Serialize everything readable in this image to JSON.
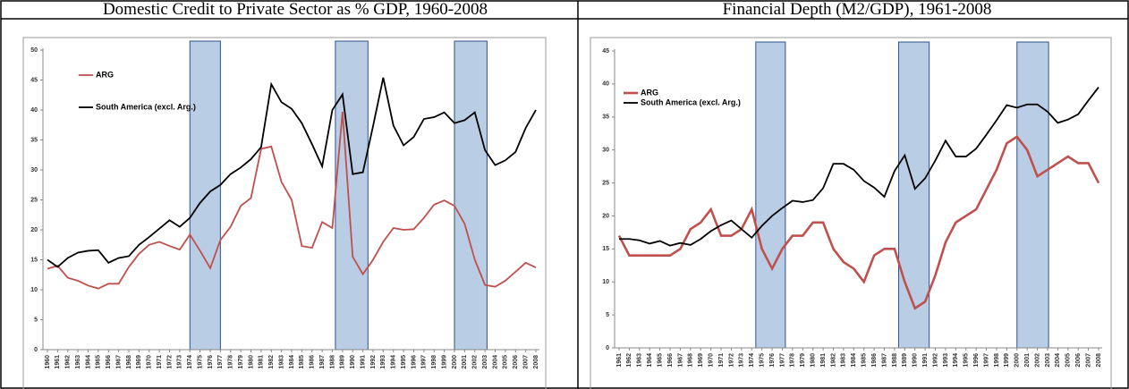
{
  "chart_data": [
    {
      "type": "line",
      "title": "Domestic Credit to Private Sector as % GDP, 1960-2008",
      "x": [
        1960,
        1961,
        1962,
        1963,
        1964,
        1965,
        1966,
        1967,
        1968,
        1969,
        1970,
        1971,
        1972,
        1973,
        1974,
        1975,
        1976,
        1977,
        1978,
        1979,
        1980,
        1981,
        1982,
        1983,
        1984,
        1985,
        1986,
        1987,
        1988,
        1989,
        1990,
        1991,
        1992,
        1993,
        1994,
        1995,
        1996,
        1997,
        1998,
        1999,
        2000,
        2001,
        2002,
        2003,
        2004,
        2005,
        2006,
        2007,
        2008
      ],
      "xlim": [
        1960,
        2008
      ],
      "series": [
        {
          "name": "ARG",
          "color": "#c0504d",
          "values": [
            13.5,
            14,
            12,
            11.5,
            10.7,
            10.2,
            11,
            11,
            13.8,
            16,
            17.5,
            18,
            17.3,
            16.7,
            19.2,
            16.5,
            13.6,
            18.3,
            20.5,
            24,
            25.3,
            33.5,
            33.9,
            28,
            25,
            17.3,
            17,
            21.3,
            20.3,
            39.7,
            15.5,
            12.6,
            15,
            18,
            20.3,
            20,
            20.1,
            22,
            24.2,
            24.9,
            24,
            21,
            15,
            10.8,
            10.5,
            11.5,
            13,
            14.5,
            13.7
          ]
        },
        {
          "name": "South America (excl. Arg.)",
          "color": "#000000",
          "values": [
            15,
            13.8,
            15.3,
            16.2,
            16.5,
            16.6,
            14.5,
            15.3,
            15.6,
            17.5,
            18.8,
            20.2,
            21.6,
            20.5,
            22,
            24.5,
            26.4,
            27.5,
            29.3,
            30.4,
            31.8,
            33.8,
            44.3,
            41.3,
            40.2,
            37.8,
            34.3,
            30.6,
            40,
            42.6,
            29.3,
            29.6,
            37.3,
            45.4,
            37.4,
            34.1,
            35.5,
            38.5,
            38.8,
            39.6,
            37.8,
            38.3,
            39.6,
            33.3,
            30.8,
            31.6,
            33,
            37,
            40
          ]
        }
      ],
      "shaded_periods": [
        [
          1974,
          1977
        ],
        [
          1988.3,
          1991.5
        ],
        [
          2000,
          2003.2
        ]
      ],
      "shade_color": "#b9cde5",
      "ylim": [
        0,
        50
      ],
      "yticks": [
        0,
        5,
        10,
        15,
        20,
        25,
        30,
        35,
        40,
        45,
        50
      ],
      "legend": "upper left"
    },
    {
      "type": "line",
      "title": "Financial Depth (M2/GDP), 1961-2008",
      "x": [
        1961,
        1962,
        1963,
        1964,
        1965,
        1966,
        1967,
        1968,
        1969,
        1970,
        1971,
        1972,
        1973,
        1974,
        1975,
        1976,
        1977,
        1978,
        1979,
        1980,
        1981,
        1982,
        1983,
        1984,
        1985,
        1986,
        1987,
        1988,
        1989,
        1990,
        1991,
        1992,
        1993,
        1994,
        1995,
        1996,
        1997,
        1998,
        1999,
        2000,
        2001,
        2002,
        2003,
        2004,
        2005,
        2006,
        2007,
        2008
      ],
      "xlim": [
        1961,
        2008
      ],
      "series": [
        {
          "name": "ARG",
          "color": "#c0504d",
          "values": [
            17,
            14,
            14,
            14,
            14,
            14,
            15,
            18,
            19,
            21,
            17,
            17,
            18,
            21,
            15,
            12,
            15,
            17,
            17,
            19,
            19,
            15,
            13,
            12,
            10,
            14,
            15,
            15,
            10,
            6,
            7,
            11,
            16,
            19,
            20,
            21,
            24,
            27,
            31,
            32,
            30,
            26,
            27,
            28,
            29,
            28,
            28,
            25
          ]
        },
        {
          "name": "South America (excl. Arg.)",
          "color": "#000000",
          "values": [
            16.5,
            16.5,
            16.3,
            15.8,
            16.2,
            15.5,
            15.9,
            15.6,
            16.5,
            17.7,
            18.6,
            19.3,
            18,
            16.7,
            18.5,
            20,
            21.2,
            22.3,
            22.1,
            22.4,
            24.2,
            27.9,
            27.9,
            27,
            25.3,
            24.3,
            22.9,
            26.8,
            29.2,
            24.1,
            25.7,
            28.4,
            31.4,
            29,
            29,
            30.2,
            32.3,
            34.5,
            36.8,
            36.4,
            36.9,
            36.9,
            35.8,
            34.1,
            34.6,
            35.4,
            37.5,
            39.5
          ]
        }
      ],
      "shaded_periods": [
        [
          1974.4,
          1977.3
        ],
        [
          1988.4,
          1991.4
        ],
        [
          2000,
          2003.1
        ]
      ],
      "shade_color": "#b9cde5",
      "ylim": [
        0,
        45
      ],
      "yticks": [
        0,
        5,
        10,
        15,
        20,
        25,
        30,
        35,
        40,
        45
      ],
      "legend": "upper left"
    }
  ]
}
